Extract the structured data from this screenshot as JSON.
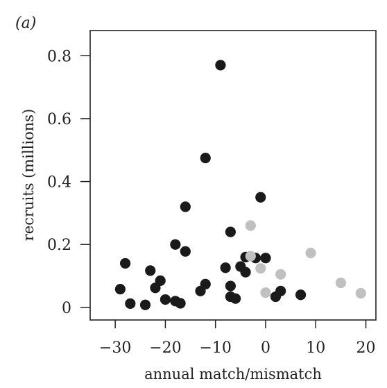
{
  "chart_data": {
    "type": "scatter",
    "panel_label": "(a)",
    "title": "",
    "xlabel": "annual match/mismatch",
    "ylabel": "recruits (millions)",
    "xlim": [
      -35,
      22
    ],
    "ylim": [
      -0.04,
      0.88
    ],
    "xticks": [
      -30,
      -20,
      -10,
      0,
      10,
      20
    ],
    "xtick_labels": [
      "−30",
      "−20",
      "−10",
      "0",
      "10",
      "20"
    ],
    "yticks": [
      0,
      0.2,
      0.4,
      0.6,
      0.8
    ],
    "ytick_labels": [
      "0",
      "0.2",
      "0.4",
      "0.6",
      "0.8"
    ],
    "grid": false,
    "colors": {
      "dark": "#1a1a1a",
      "light": "#c0c0c0"
    },
    "series": [
      {
        "color_key": "dark",
        "points": [
          {
            "x": -9,
            "y": 0.77
          },
          {
            "x": -12,
            "y": 0.475
          },
          {
            "x": -1,
            "y": 0.35
          },
          {
            "x": -16,
            "y": 0.32
          },
          {
            "x": -7,
            "y": 0.24
          },
          {
            "x": -18,
            "y": 0.2
          },
          {
            "x": -16,
            "y": 0.178
          },
          {
            "x": -28,
            "y": 0.14
          },
          {
            "x": -23,
            "y": 0.117
          },
          {
            "x": -4,
            "y": 0.16
          },
          {
            "x": -2,
            "y": 0.157
          },
          {
            "x": 0,
            "y": 0.157
          },
          {
            "x": -8,
            "y": 0.126
          },
          {
            "x": -5,
            "y": 0.13
          },
          {
            "x": -4,
            "y": 0.112
          },
          {
            "x": -21,
            "y": 0.085
          },
          {
            "x": -22,
            "y": 0.062
          },
          {
            "x": -29,
            "y": 0.058
          },
          {
            "x": -12,
            "y": 0.074
          },
          {
            "x": -13,
            "y": 0.052
          },
          {
            "x": -7,
            "y": 0.068
          },
          {
            "x": -7,
            "y": 0.034
          },
          {
            "x": -6,
            "y": 0.028
          },
          {
            "x": -20,
            "y": 0.025
          },
          {
            "x": -18,
            "y": 0.02
          },
          {
            "x": -17,
            "y": 0.013
          },
          {
            "x": -27,
            "y": 0.012
          },
          {
            "x": -24,
            "y": 0.008
          },
          {
            "x": 2,
            "y": 0.034
          },
          {
            "x": 3,
            "y": 0.052
          },
          {
            "x": 7,
            "y": 0.04
          }
        ]
      },
      {
        "color_key": "light",
        "points": [
          {
            "x": -3,
            "y": 0.26
          },
          {
            "x": -3,
            "y": 0.163
          },
          {
            "x": 9,
            "y": 0.173
          },
          {
            "x": -1,
            "y": 0.124
          },
          {
            "x": 3,
            "y": 0.105
          },
          {
            "x": 15,
            "y": 0.078
          },
          {
            "x": 0,
            "y": 0.047
          },
          {
            "x": 19,
            "y": 0.045
          }
        ]
      }
    ]
  }
}
